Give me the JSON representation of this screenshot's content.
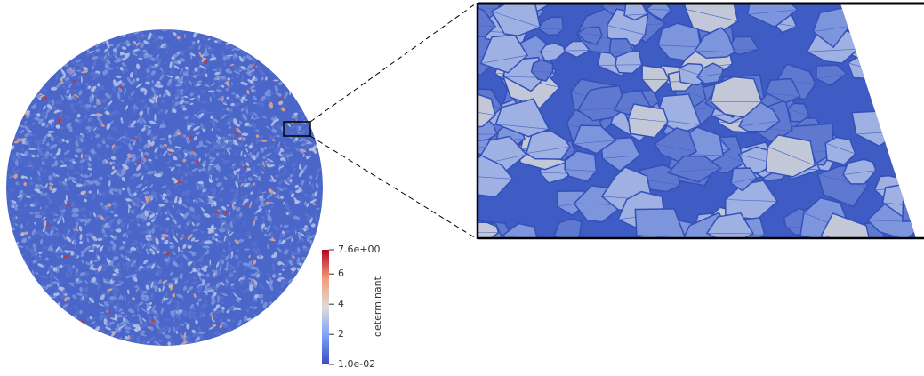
{
  "colorbar": {
    "title": "determinant",
    "ticks": [
      {
        "value": 0.01,
        "label": "1.0e-02"
      },
      2,
      4,
      6,
      {
        "value": 7.6,
        "label": "7.6e+00"
      }
    ]
  }
}
